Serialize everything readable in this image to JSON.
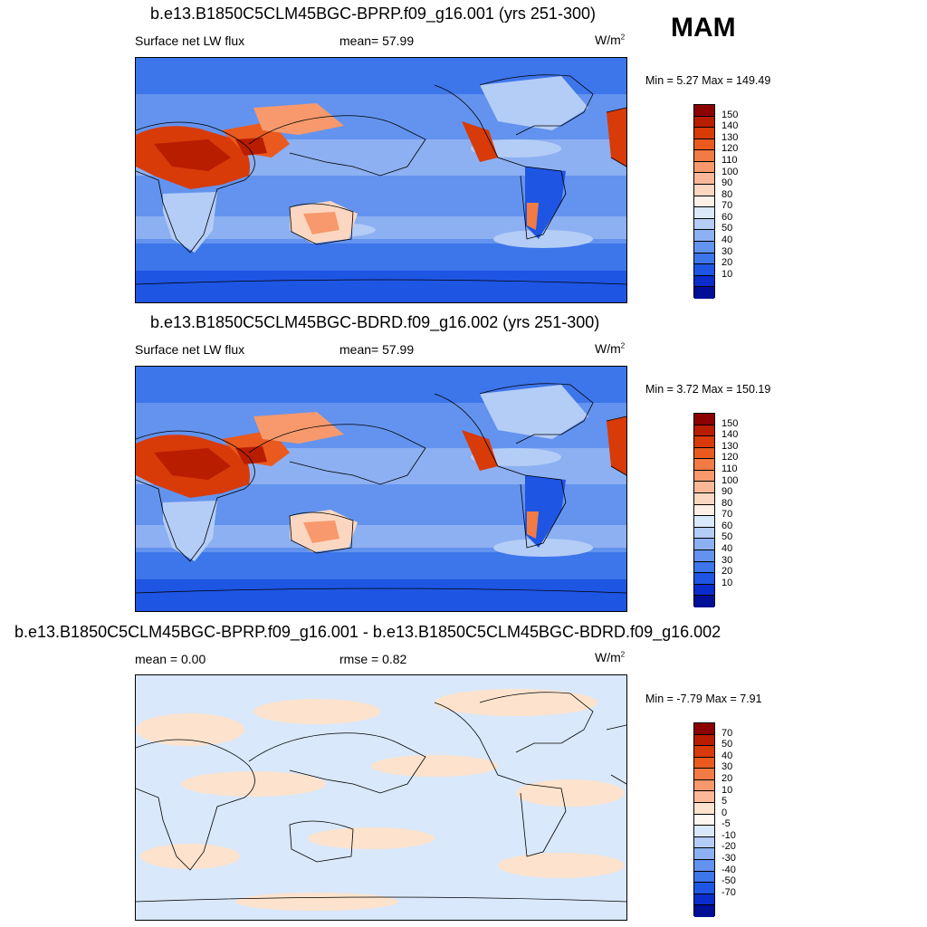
{
  "season": "MAM",
  "panels": [
    {
      "title": "b.e13.B1850C5CLM45BGC-BPRP.f09_g16.001 (yrs 251-300)",
      "left_label": "Surface net LW flux",
      "center_label": "mean=  57.99",
      "units": "W/m",
      "units_sup": "2",
      "minmax": "Min =   5.27 Max = 149.49",
      "type": "field"
    },
    {
      "title": "b.e13.B1850C5CLM45BGC-BDRD.f09_g16.002 (yrs 251-300)",
      "left_label": "Surface net LW flux",
      "center_label": "mean=  57.99",
      "units": "W/m",
      "units_sup": "2",
      "minmax": "Min =   3.72 Max = 150.19",
      "type": "field"
    },
    {
      "title": "b.e13.B1850C5CLM45BGC-BPRP.f09_g16.001 - b.e13.B1850C5CLM45BGC-BDRD.f09_g16.002",
      "left_label": "mean =   0.00",
      "center_label": "rmse =   0.82",
      "units": "W/m",
      "units_sup": "2",
      "minmax": "Min =  -7.79 Max =   7.91",
      "type": "diff"
    }
  ],
  "colorbars": {
    "field": {
      "labels": [
        "150",
        "140",
        "130",
        "120",
        "110",
        "100",
        "90",
        "80",
        "70",
        "60",
        "50",
        "40",
        "30",
        "20",
        "10"
      ],
      "colors": [
        "#8b0000",
        "#b81d00",
        "#d83a08",
        "#ea5a1e",
        "#f27a45",
        "#f7996c",
        "#fab898",
        "#fbd7c1",
        "#fdf0e6",
        "#d9e8fb",
        "#b4cdf6",
        "#8db0f2",
        "#6393ee",
        "#3d75ea",
        "#1e55e3",
        "#0a2ccb",
        "#000f96"
      ]
    },
    "diff": {
      "labels": [
        "70",
        "50",
        "40",
        "30",
        "20",
        "10",
        "5",
        "0",
        "-5",
        "-10",
        "-20",
        "-30",
        "-40",
        "-50",
        "-70"
      ],
      "colors": [
        "#8b0000",
        "#b81d00",
        "#d83a08",
        "#ea5a1e",
        "#f27a45",
        "#f7996c",
        "#fab898",
        "#fde3cd",
        "#fff7f0",
        "#d9e8fb",
        "#b4cdf6",
        "#8db0f2",
        "#6393ee",
        "#3d75ea",
        "#1e55e3",
        "#0a2ccb",
        "#000f96"
      ]
    }
  }
}
